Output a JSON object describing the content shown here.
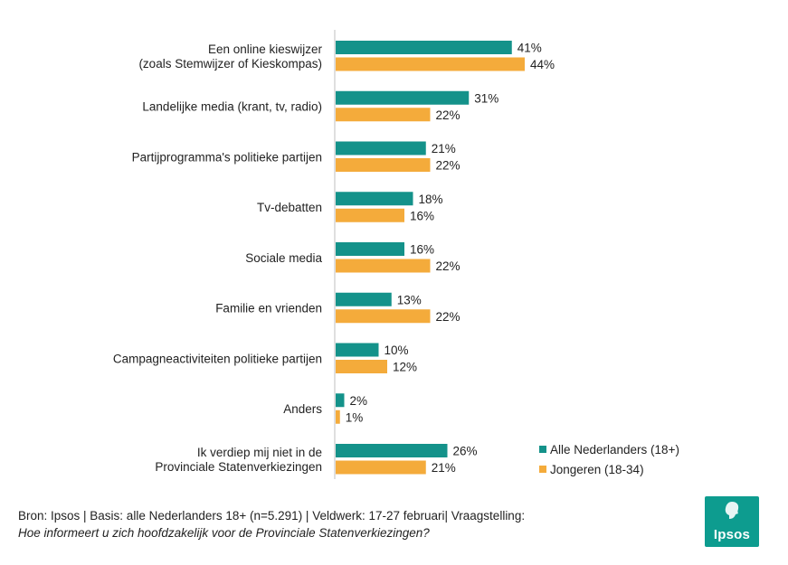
{
  "chart_data": {
    "type": "bar",
    "orientation": "horizontal",
    "categories": [
      [
        "Een online kieswijzer",
        "(zoals Stemwijzer of Kieskompas)"
      ],
      [
        "Landelijke media (krant, tv, radio)"
      ],
      [
        "Partijprogramma's politieke partijen"
      ],
      [
        "Tv-debatten"
      ],
      [
        "Sociale media"
      ],
      [
        "Familie en vrienden"
      ],
      [
        "Campagneactiviteiten politieke partijen"
      ],
      [
        "Anders"
      ],
      [
        "Ik verdiep mij niet in de",
        "Provinciale Statenverkiezingen"
      ]
    ],
    "series": [
      {
        "name": "Alle Nederlanders (18+)",
        "color": "#14928a",
        "values": [
          41,
          31,
          21,
          18,
          16,
          13,
          10,
          2,
          26
        ]
      },
      {
        "name": "Jongeren (18-34)",
        "color": "#f4ab3b",
        "values": [
          44,
          22,
          22,
          16,
          22,
          22,
          12,
          1,
          21
        ]
      }
    ],
    "value_suffix": "%",
    "legend_position": "bottom-right",
    "grid": false
  },
  "source": {
    "line1": "Bron: Ipsos |  Basis: alle Nederlanders 18+ (n=5.291) | Veldwerk: 17-27 februari| Vraagstelling:",
    "line2": "Hoe informeert u zich hoofdzakelijk voor de Provinciale Statenverkiezingen?"
  },
  "logo": {
    "text": "Ipsos"
  }
}
